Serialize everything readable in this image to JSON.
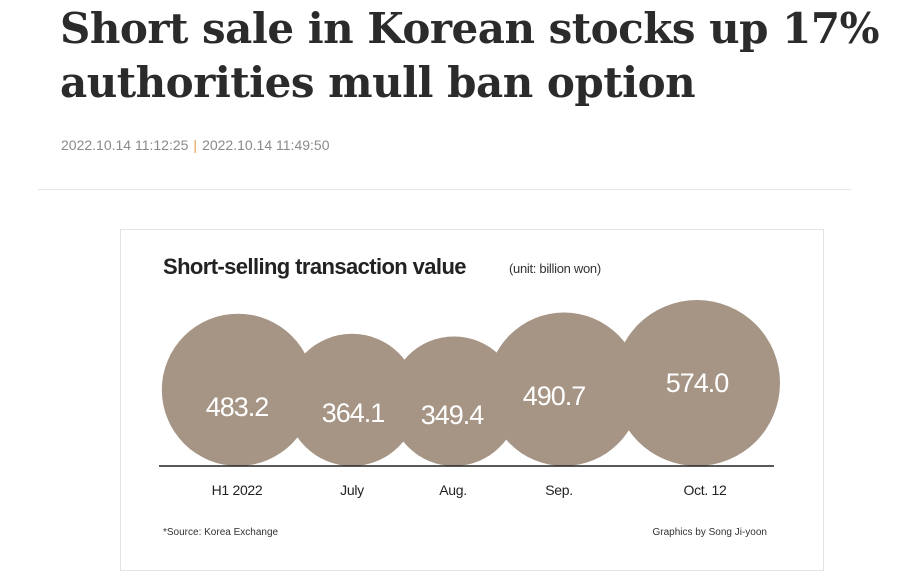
{
  "article": {
    "title_line1": "Short sale in Korean stocks up 17%",
    "title_line2": "authorities mull ban option",
    "published": "2022.10.14 11:12:25",
    "date_separator": "|",
    "updated": "2022.10.14 11:49:50"
  },
  "chart_data": {
    "type": "bubble",
    "title": "Short-selling transaction value",
    "unit": "(unit: billion won)",
    "categories": [
      "H1 2022",
      "July",
      "Aug.",
      "Sep.",
      "Oct. 12"
    ],
    "values": [
      483.2,
      364.1,
      349.4,
      490.7,
      574.0
    ],
    "value_labels": [
      "483.2",
      "364.1",
      "349.4",
      "490.7",
      "574.0"
    ],
    "source": "*Source: Korea Exchange",
    "credit": "Graphics by Song Ji-yoon",
    "bubble_color": "#a69585",
    "label_color": "#ffffff"
  }
}
